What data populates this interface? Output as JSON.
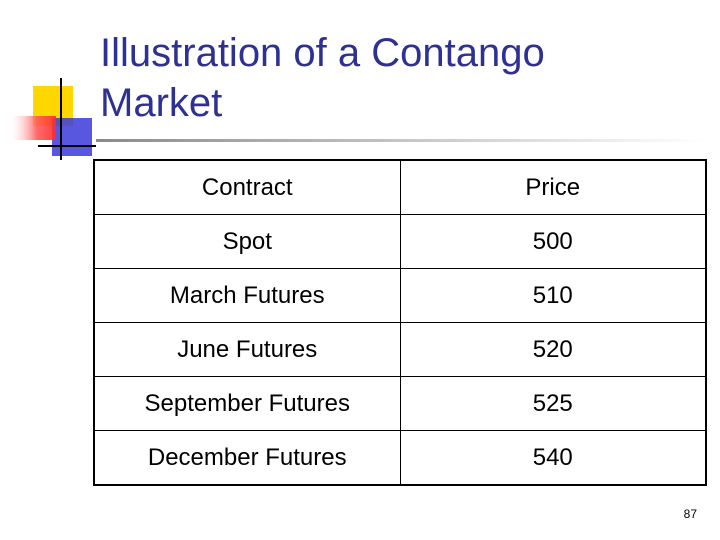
{
  "slide": {
    "title_line1": "Illustration of a Contango",
    "title_line2": "Market",
    "page_number": "87"
  },
  "table": {
    "headers": [
      "Contract",
      "Price"
    ],
    "rows": [
      [
        "Spot",
        "500"
      ],
      [
        "March Futures",
        "510"
      ],
      [
        "June Futures",
        "520"
      ],
      [
        "September Futures",
        "525"
      ],
      [
        "December Futures",
        "540"
      ]
    ]
  },
  "colors": {
    "title": "#2e3192",
    "accent_yellow": "#ffd700",
    "accent_red": "#ff3333",
    "accent_blue": "#3a3adb",
    "rule": "#c0c0c0"
  }
}
